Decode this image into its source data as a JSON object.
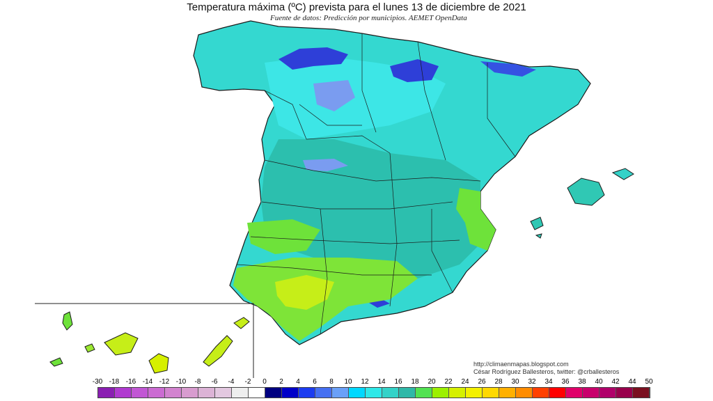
{
  "header": {
    "title": "Temperatura máxima (ºC) prevista para el lunes 13 de diciembre de 2021",
    "subtitle": "Fuente de datos: Predicción por municipios. AEMET OpenData"
  },
  "credits": {
    "url": "http://climaenmapas.blogspot.com",
    "author": "César Rodríguez Ballesteros, twitter: @crballesteros"
  },
  "legend": {
    "ticks": [
      "-30",
      "-18",
      "-16",
      "-14",
      "-12",
      "-10",
      "-8",
      "-6",
      "-4",
      "-2",
      "0",
      "2",
      "4",
      "6",
      "8",
      "10",
      "12",
      "14",
      "16",
      "18",
      "20",
      "22",
      "24",
      "26",
      "28",
      "30",
      "32",
      "34",
      "36",
      "38",
      "40",
      "42",
      "44",
      "50"
    ],
    "colors": [
      "#8a1fb2",
      "#b03ad0",
      "#c157d4",
      "#cb6bd2",
      "#d283cf",
      "#d89ccf",
      "#dcb3d6",
      "#e3c8e0",
      "#eeeeee",
      "#ffffff",
      "#000080",
      "#0000c8",
      "#1c3cf0",
      "#4670f2",
      "#6aa0f8",
      "#00d8ff",
      "#2ee8e8",
      "#34d2c8",
      "#2fb8a8",
      "#52e252",
      "#9cf000",
      "#d6f000",
      "#f4f000",
      "#ffd800",
      "#ffb000",
      "#ff8c00",
      "#ff4000",
      "#ff0000",
      "#e0006a",
      "#c8006c",
      "#b0006a",
      "#98004c",
      "#7a1020"
    ]
  },
  "map": {
    "colors": {
      "cold_north": "#2e3fd8",
      "north_periwinkle": "#7a9cf0",
      "cyan": "#34e0e0",
      "teal": "#30c8b4",
      "dark_teal": "#2aa890",
      "green": "#6ee23a",
      "yellow_green": "#c6ee18",
      "sea": "#ffffff",
      "border": "#1a1a1a"
    }
  }
}
